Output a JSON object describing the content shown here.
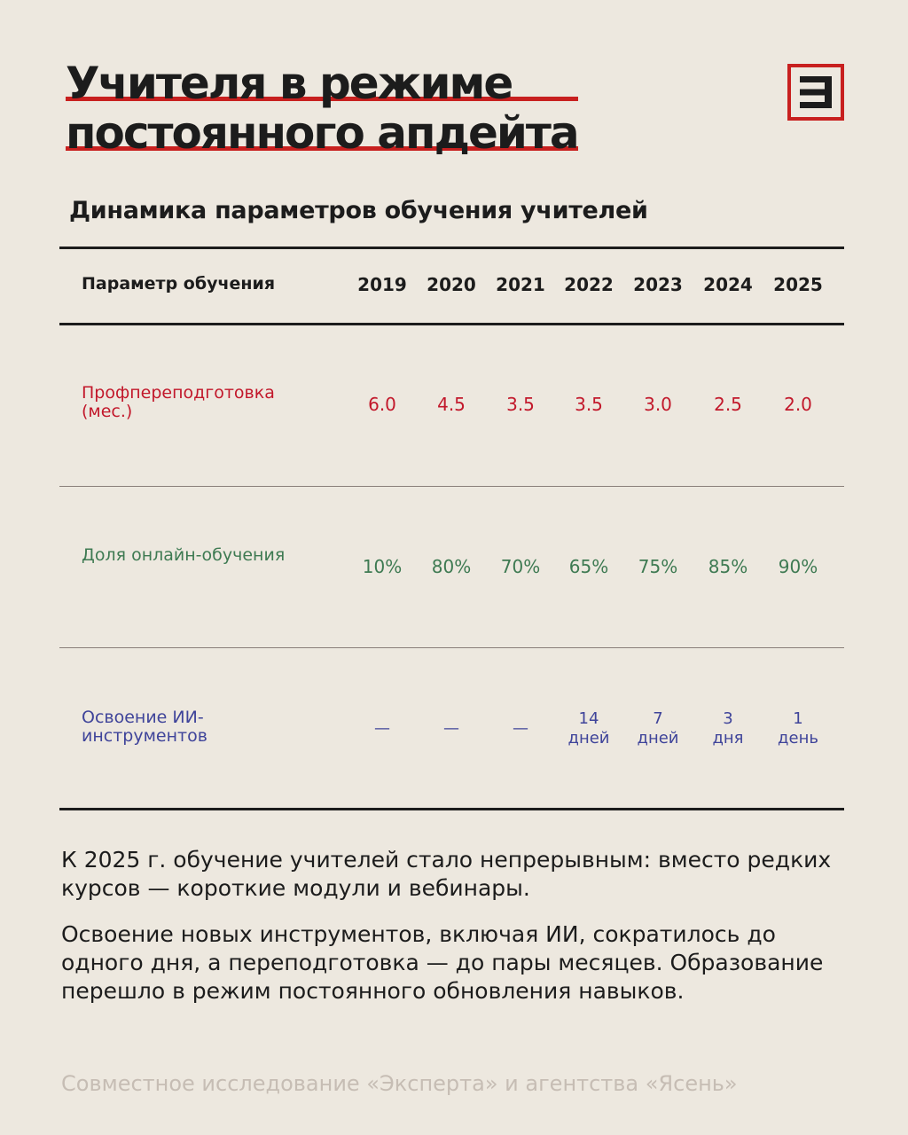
{
  "title": {
    "line1": "Учителя в режиме",
    "line2": "постоянного апдейта"
  },
  "logo": {
    "icon": "letter-e-logo",
    "accent": "#c8201f"
  },
  "subtitle": "Динамика параметров обучения учителей",
  "table": {
    "param_header": "Параметр обучения",
    "years": [
      "2019",
      "2020",
      "2021",
      "2022",
      "2023",
      "2024",
      "2025"
    ],
    "rows": [
      {
        "label": "Профпереподготовка (мес.)",
        "color": "#c2182b",
        "values": [
          "6.0",
          "4.5",
          "3.5",
          "3.5",
          "3.0",
          "2.5",
          "2.0"
        ]
      },
      {
        "label": "Доля онлайн-обучения",
        "color": "#3e7a52",
        "values": [
          "10%",
          "80%",
          "70%",
          "65%",
          "75%",
          "85%",
          "90%"
        ]
      },
      {
        "label": "Освоение ИИ-инструментов",
        "color": "#3f449a",
        "values": [
          {
            "num": "—",
            "unit": ""
          },
          {
            "num": "—",
            "unit": ""
          },
          {
            "num": "—",
            "unit": ""
          },
          {
            "num": "14",
            "unit": "дней"
          },
          {
            "num": "7",
            "unit": "дней"
          },
          {
            "num": "3",
            "unit": "дня"
          },
          {
            "num": "1",
            "unit": "день"
          }
        ]
      }
    ]
  },
  "paragraphs": [
    "К 2025 г. обучение учителей стало непрерывным: вместо редких курсов — короткие модули и вебинары.",
    "Освоение новых инструментов, включая ИИ, сократилось до одного дня, а переподготовка — до пары месяцев. Образование перешло в режим постоянного обновления навыков."
  ],
  "footer": "Совместное исследование «Эксперта» и агентства «Ясень»"
}
